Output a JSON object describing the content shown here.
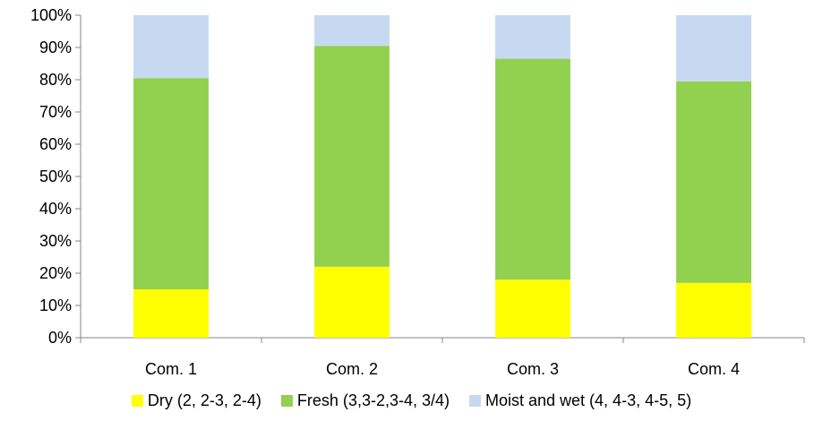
{
  "chart_data": {
    "type": "bar",
    "stacked": true,
    "normalized_percent": true,
    "title": "",
    "xlabel": "",
    "ylabel": "",
    "categories": [
      "Com. 1",
      "Com. 2",
      "Com. 3",
      "Com. 4"
    ],
    "series": [
      {
        "name": "Dry (2, 2-3, 2-4)",
        "color": "#FFFF00",
        "values": [
          15,
          22,
          18,
          17
        ]
      },
      {
        "name": "Fresh (3,3-2,3-4, 3/4)",
        "color": "#92D050",
        "values": [
          65.5,
          68.5,
          68.5,
          62.5
        ]
      },
      {
        "name": "Moist and wet (4, 4-3, 4-5, 5)",
        "color": "#C6D9F1",
        "values": [
          19.5,
          9.5,
          13.5,
          20.5
        ]
      }
    ],
    "ylim": [
      0,
      100
    ],
    "yticks": [
      "0%",
      "10%",
      "20%",
      "30%",
      "40%",
      "50%",
      "60%",
      "70%",
      "80%",
      "90%",
      "100%"
    ],
    "grid": false,
    "legend": "bottom"
  }
}
